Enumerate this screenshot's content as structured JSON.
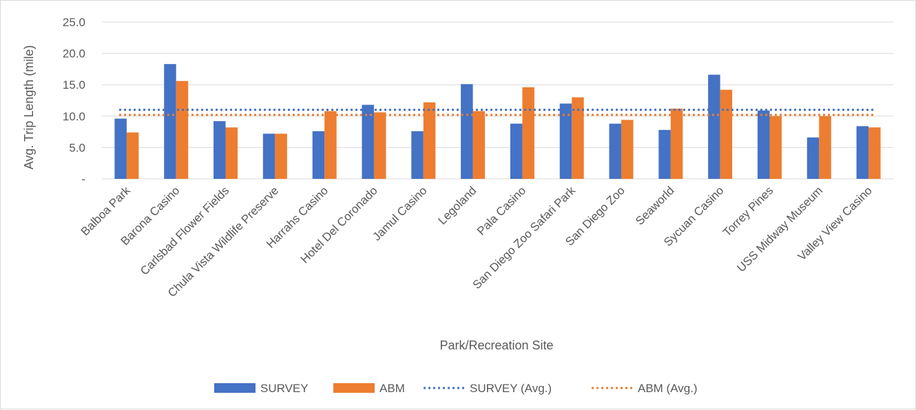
{
  "chart_data": {
    "type": "bar",
    "title": "",
    "xlabel": "Park/Recreation Site",
    "ylabel": "Avg. Trip Length (mile)",
    "ylim": [
      0,
      25
    ],
    "yticks": [
      0,
      5,
      10,
      15,
      20,
      25
    ],
    "ytick_labels": [
      "-",
      "5.0",
      "10.0",
      "15.0",
      "20.0",
      "25.0"
    ],
    "grid": true,
    "legend_position": "bottom",
    "categories": [
      "Balboa Park",
      "Barona Casino",
      "Carlsbad Flower Fields",
      "Chula Vista Wildlife Preserve",
      "Harrahs Casino",
      "Hotel Del Coronado",
      "Jamul Casino",
      "Legoland",
      "Pala Casino",
      "San Diego Zoo Safari Park",
      "San Diego Zoo",
      "Seaworld",
      "Sycuan Casino",
      "Torrey Pines",
      "USS Midway Museum",
      "Valley View Casino"
    ],
    "series": [
      {
        "name": "SURVEY",
        "color": "#4472c4",
        "values": [
          9.6,
          18.3,
          9.2,
          7.2,
          7.6,
          11.8,
          7.6,
          15.1,
          8.8,
          12.0,
          8.8,
          7.8,
          16.6,
          10.9,
          6.6,
          8.4
        ]
      },
      {
        "name": "ABM",
        "color": "#ed7d31",
        "values": [
          7.4,
          15.6,
          8.2,
          7.2,
          10.8,
          10.6,
          12.2,
          10.8,
          14.6,
          13.0,
          9.4,
          11.2,
          14.2,
          10.0,
          10.0,
          8.2
        ]
      }
    ],
    "reference_lines": [
      {
        "name": "SURVEY (Avg.)",
        "color": "#4472c4",
        "value": 11.0,
        "style": "dotted"
      },
      {
        "name": "ABM (Avg.)",
        "color": "#ed7d31",
        "value": 10.2,
        "style": "dotted"
      }
    ]
  }
}
